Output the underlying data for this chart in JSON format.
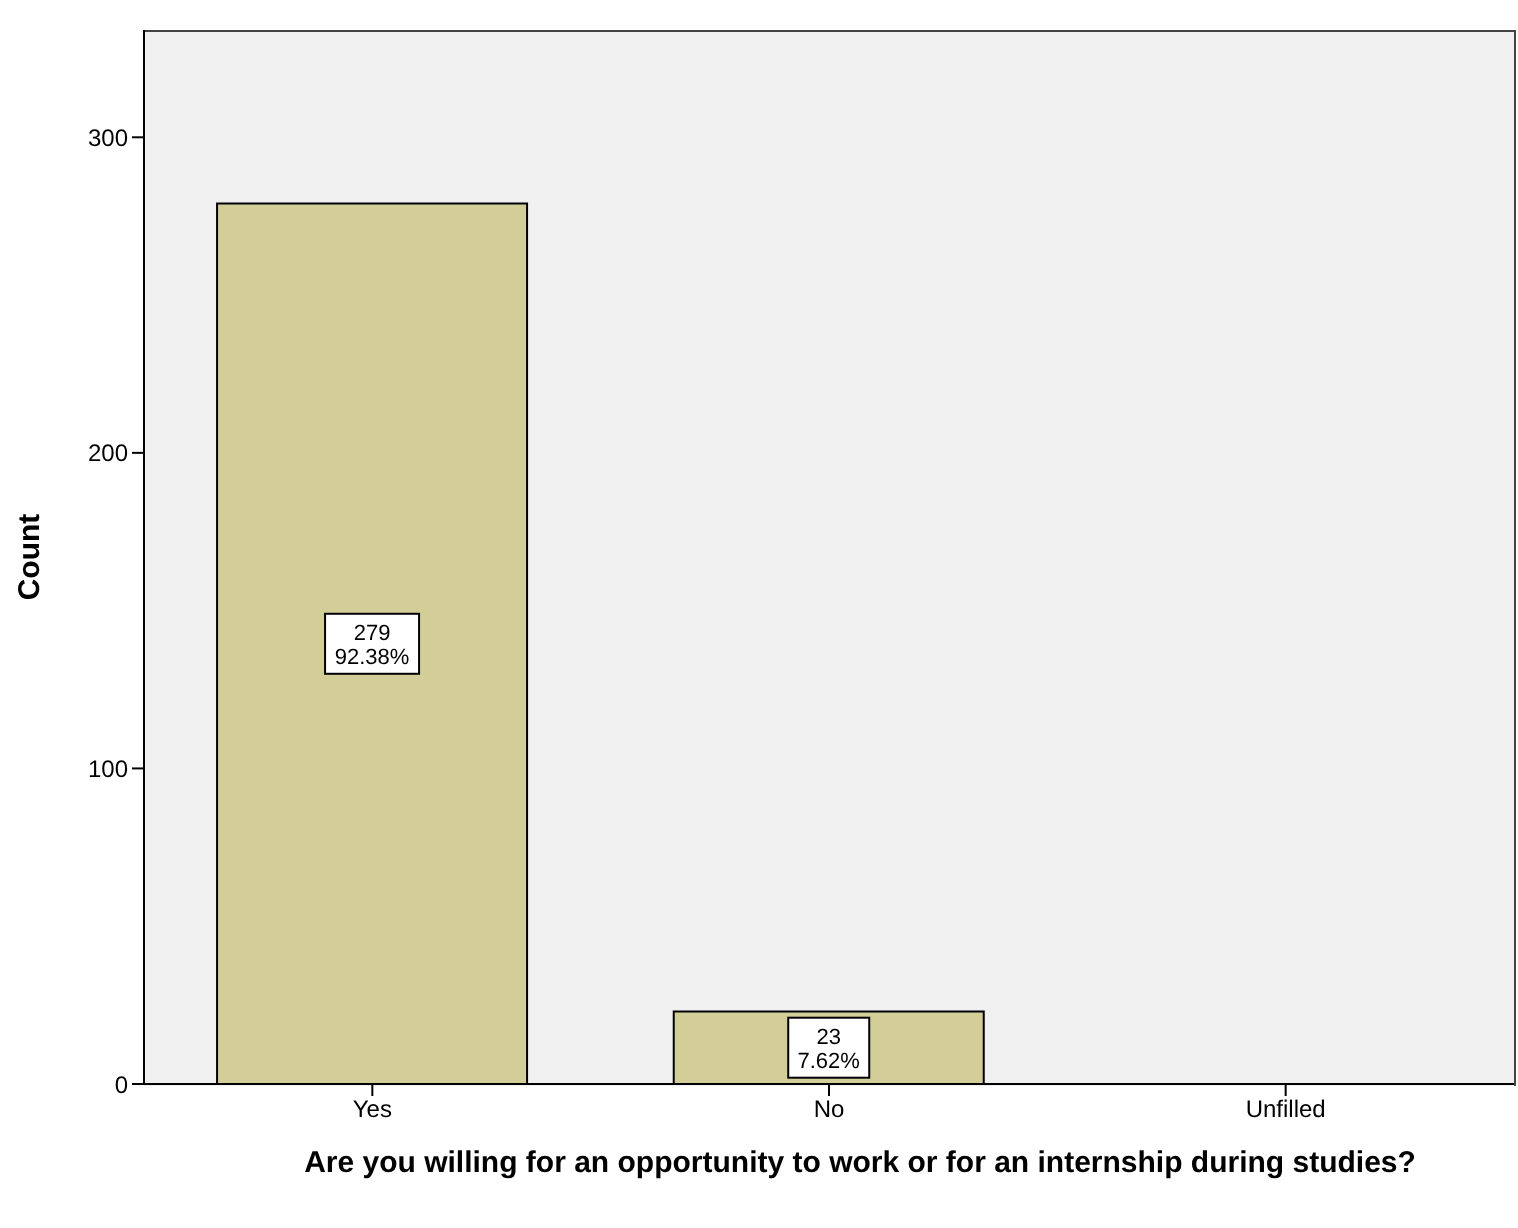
{
  "chart_data": {
    "type": "bar",
    "xlabel": "Are you willing for an opportunity to work or for an internship during studies?",
    "ylabel": "Count",
    "categories": [
      "Yes",
      "No",
      "Unfilled"
    ],
    "values": [
      279,
      23,
      0
    ],
    "value_labels": [
      "279\n92.38%",
      "23\n7.62%",
      null
    ],
    "color": "#d3ce98",
    "ylim": [
      0,
      334
    ],
    "yticks": [
      0,
      100,
      200,
      300
    ],
    "grid": false
  }
}
